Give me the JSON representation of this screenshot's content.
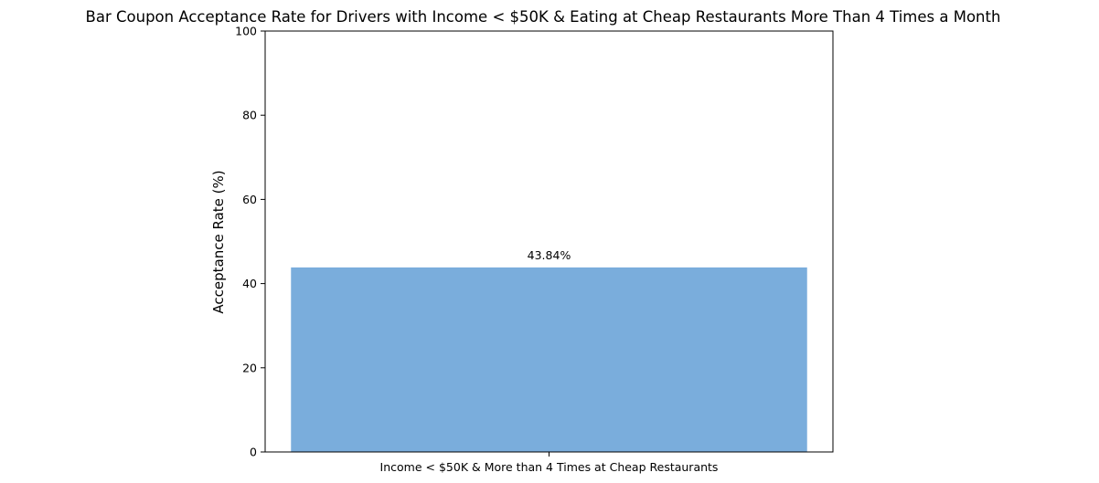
{
  "chart_data": {
    "type": "bar",
    "title": "Bar Coupon Acceptance Rate for Drivers with Income < $50K & Eating at Cheap Restaurants More Than 4 Times a Month",
    "xlabel": "",
    "ylabel": "Acceptance Rate (%)",
    "categories": [
      "Income < $50K & More than 4 Times at Cheap Restaurants"
    ],
    "values": [
      43.84
    ],
    "data_labels": [
      "43.84%"
    ],
    "ylim": [
      0,
      100
    ],
    "yticks": [
      0,
      20,
      40,
      60,
      80,
      100
    ],
    "ytick_labels": [
      "0",
      "20",
      "40",
      "60",
      "80",
      "100"
    ],
    "grid": false,
    "bar_color": "#7aaddc"
  }
}
